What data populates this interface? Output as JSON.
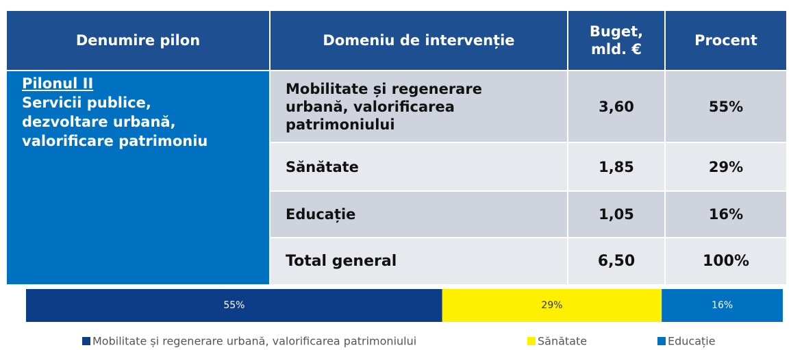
{
  "table": {
    "header": [
      "Denumire pilon",
      "Domeniu de intervenție",
      "Buget, mld. €",
      "Procent"
    ],
    "pillar": {
      "name": "Pilonul II",
      "description": "Servicii publice, dezvoltare urbană, valorificare patrimoniu"
    },
    "rows": [
      [
        "Mobilitate și regenerare urbană, valorificarea patrimoniului",
        "3,60",
        "55%"
      ],
      [
        "Sănătate",
        "1,85",
        "29%"
      ],
      [
        "Educație",
        "1,05",
        "16%"
      ],
      [
        "Total general",
        "6,50",
        "100%"
      ]
    ]
  },
  "chart_data": {
    "type": "stacked-bar",
    "series": [
      {
        "name": "Mobilitate și regenerare urbană, valorificarea patrimoniului",
        "color": "#0d3d87",
        "values": [
          55
        ],
        "value_labels": [
          "55%"
        ]
      },
      {
        "name": "Sănătate",
        "color": "#ffef00",
        "values": [
          29
        ],
        "value_labels": [
          "29%"
        ]
      },
      {
        "name": "Educație",
        "color": "#0070c0",
        "values": [
          16
        ],
        "value_labels": [
          "16%"
        ]
      }
    ]
  }
}
